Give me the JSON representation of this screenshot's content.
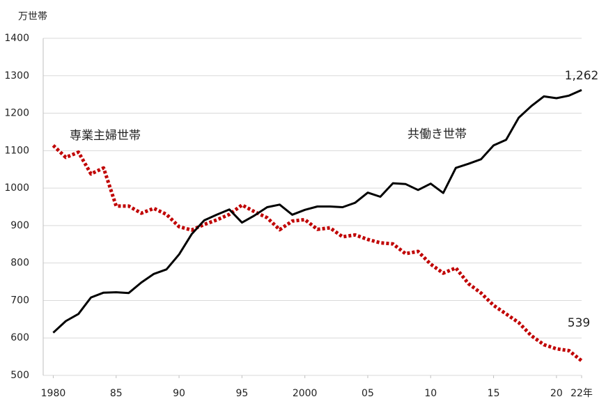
{
  "chart_data": {
    "type": "line",
    "y_label": "万世帯",
    "x": [
      1980,
      1981,
      1982,
      1983,
      1984,
      1985,
      1986,
      1987,
      1988,
      1989,
      1990,
      1991,
      1992,
      1993,
      1994,
      1995,
      1996,
      1997,
      1998,
      1999,
      2000,
      2001,
      2002,
      2003,
      2004,
      2005,
      2006,
      2007,
      2008,
      2009,
      2010,
      2011,
      2012,
      2013,
      2014,
      2015,
      2016,
      2017,
      2018,
      2019,
      2020,
      2021,
      2022
    ],
    "series": [
      {
        "name": "専業主婦世帯",
        "color": "#c00000",
        "style": "dotted",
        "values": [
          1114,
          1082,
          1096,
          1038,
          1054,
          952,
          952,
          933,
          946,
          930,
          897,
          888,
          903,
          915,
          930,
          955,
          937,
          921,
          889,
          912,
          916,
          890,
          894,
          870,
          875,
          863,
          854,
          851,
          825,
          831,
          797,
          773,
          787,
          745,
          720,
          687,
          664,
          641,
          606,
          582,
          571,
          566,
          539
        ],
        "value_labels": [
          null,
          null,
          null,
          null,
          null,
          null,
          null,
          null,
          null,
          null,
          null,
          null,
          null,
          null,
          null,
          null,
          null,
          null,
          null,
          null,
          null,
          null,
          null,
          null,
          null,
          null,
          null,
          null,
          null,
          null,
          null,
          null,
          null,
          null,
          null,
          null,
          null,
          null,
          null,
          null,
          null,
          null,
          "539"
        ]
      },
      {
        "name": "共働き世帯",
        "color": "#000000",
        "style": "solid",
        "values": [
          614,
          645,
          664,
          708,
          721,
          722,
          720,
          748,
          771,
          783,
          823,
          877,
          914,
          929,
          943,
          908,
          927,
          949,
          956,
          929,
          942,
          951,
          951,
          949,
          961,
          988,
          977,
          1013,
          1011,
          995,
          1012,
          987,
          1054,
          1065,
          1077,
          1114,
          1129,
          1188,
          1219,
          1245,
          1240,
          1247,
          1262
        ],
        "value_labels": [
          null,
          null,
          null,
          null,
          null,
          null,
          null,
          null,
          null,
          null,
          null,
          null,
          null,
          null,
          null,
          null,
          null,
          null,
          null,
          null,
          null,
          null,
          null,
          null,
          null,
          null,
          null,
          null,
          null,
          null,
          null,
          null,
          null,
          null,
          null,
          null,
          null,
          null,
          null,
          null,
          null,
          null,
          "1,262"
        ]
      }
    ],
    "xlim": [
      1979.2,
      2022
    ],
    "xticks": [
      {
        "value": 1980,
        "label": "1980"
      },
      {
        "value": 1985,
        "label": "85"
      },
      {
        "value": 1990,
        "label": "90"
      },
      {
        "value": 1995,
        "label": "95"
      },
      2000,
      {
        "value": 2005,
        "label": "05"
      },
      {
        "value": 2010,
        "label": "10"
      },
      {
        "value": 2015,
        "label": "15"
      },
      {
        "value": 2020,
        "label": "20"
      },
      {
        "value": 2022,
        "label": "22年"
      }
    ],
    "ylim": [
      500,
      1400
    ],
    "yticks": [
      500,
      600,
      700,
      800,
      900,
      1000,
      1100,
      1200,
      1300,
      1400
    ],
    "grid": true
  }
}
